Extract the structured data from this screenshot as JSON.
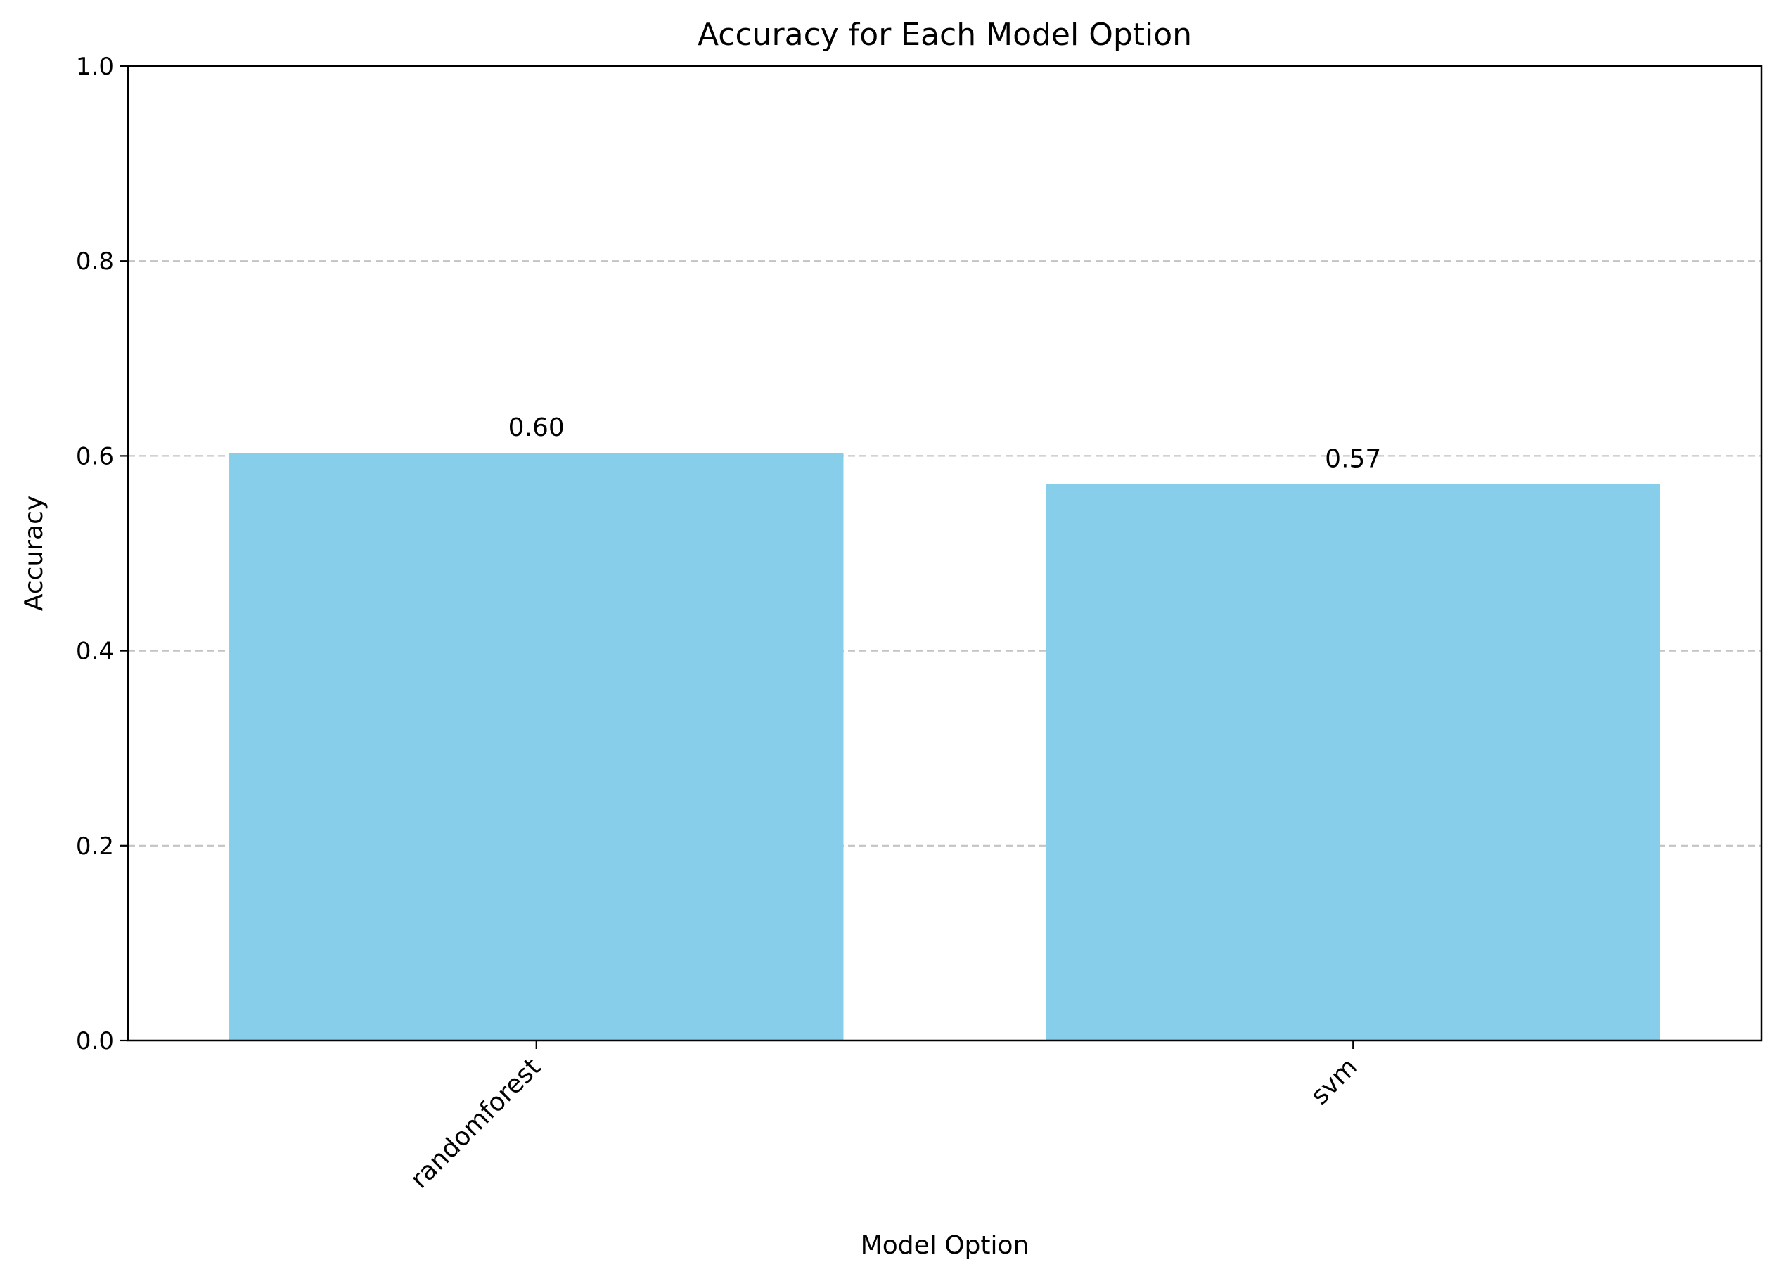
{
  "chart_data": {
    "type": "bar",
    "title": "Accuracy for Each Model Option",
    "xlabel": "Model Option",
    "ylabel": "Accuracy",
    "categories": [
      "randomforest",
      "svm"
    ],
    "values": [
      0.603,
      0.571
    ],
    "data_labels": [
      "0.60",
      "0.57"
    ],
    "ylim": [
      0,
      1.0
    ],
    "yticks": [
      0.0,
      0.2,
      0.4,
      0.6,
      0.8,
      1.0
    ],
    "ytick_labels": [
      "0.0",
      "0.2",
      "0.4",
      "0.6",
      "0.8",
      "1.0"
    ],
    "grid": "y-axis dashed",
    "bar_color": "#87CEEB",
    "grid_color": "#b0b0b0",
    "xtick_rotation": 45
  }
}
